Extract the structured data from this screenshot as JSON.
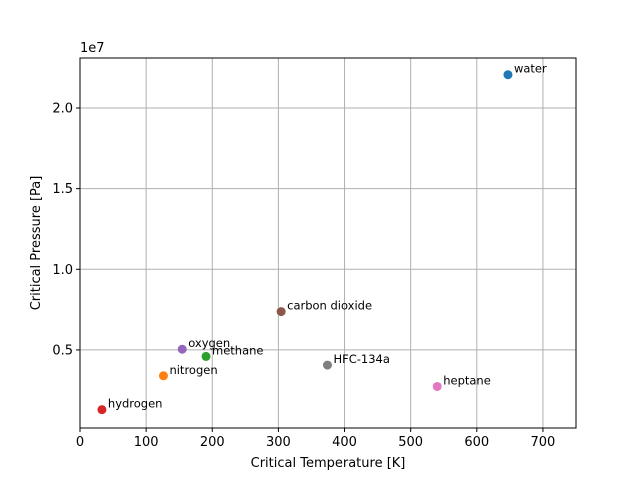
{
  "chart_data": {
    "type": "scatter",
    "title": "",
    "xlabel": "Critical Temperature [K]",
    "ylabel": "Critical Pressure [Pa]",
    "y_offset_label": "1e7",
    "xlim": [
      0,
      750
    ],
    "ylim": [
      160000,
      23100000
    ],
    "grid": true,
    "x_ticks": [
      0,
      100,
      200,
      300,
      400,
      500,
      600,
      700
    ],
    "x_tick_labels": [
      "0",
      "100",
      "200",
      "300",
      "400",
      "500",
      "600",
      "700"
    ],
    "y_ticks": [
      5000000,
      10000000,
      15000000,
      20000000
    ],
    "y_tick_labels": [
      "0.5",
      "1.0",
      "1.5",
      "2.0"
    ],
    "points": [
      {
        "label": "water",
        "x": 647.1,
        "y": 22064000,
        "color": "#1f77b4"
      },
      {
        "label": "nitrogen",
        "x": 126.19,
        "y": 3395800,
        "color": "#ff7f0e"
      },
      {
        "label": "methane",
        "x": 190.56,
        "y": 4599200,
        "color": "#2ca02c"
      },
      {
        "label": "hydrogen",
        "x": 33.145,
        "y": 1296400,
        "color": "#d62728"
      },
      {
        "label": "oxygen",
        "x": 154.58,
        "y": 5043000,
        "color": "#9467bd"
      },
      {
        "label": "carbon dioxide",
        "x": 304.13,
        "y": 7377300,
        "color": "#8c564b"
      },
      {
        "label": "heptane",
        "x": 540.13,
        "y": 2736000,
        "color": "#e377c2"
      },
      {
        "label": "HFC-134a",
        "x": 374.21,
        "y": 4059300,
        "color": "#7f7f7f"
      }
    ]
  }
}
